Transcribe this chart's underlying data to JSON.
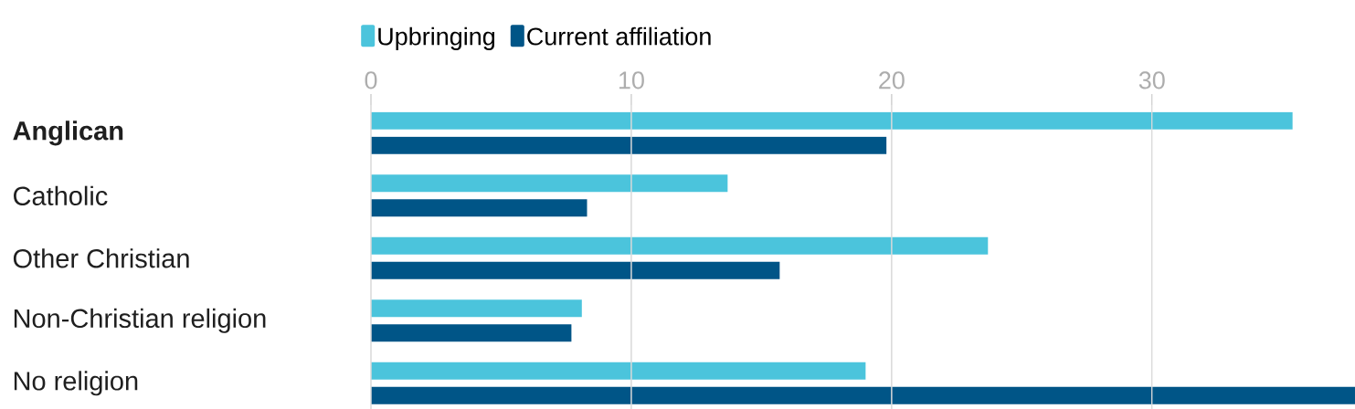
{
  "chart_data": {
    "type": "bar",
    "orientation": "horizontal",
    "categories": [
      "**Anglican**",
      "Catholic",
      "Other Christian",
      "Non-Christian religion",
      "No religion"
    ],
    "series": [
      {
        "name": "Upbringing",
        "color": "#4bc4dc",
        "values": [
          35.4,
          13.7,
          23.7,
          8.1,
          19.0
        ]
      },
      {
        "name": "Current affiliation",
        "color": "#005587",
        "values": [
          19.8,
          8.3,
          15.7,
          7.7,
          37.8
        ]
      }
    ],
    "xlim": [
      0,
      37.8
    ],
    "xticks": [
      0,
      10,
      20,
      30
    ],
    "grid": "x",
    "legend": "top"
  }
}
